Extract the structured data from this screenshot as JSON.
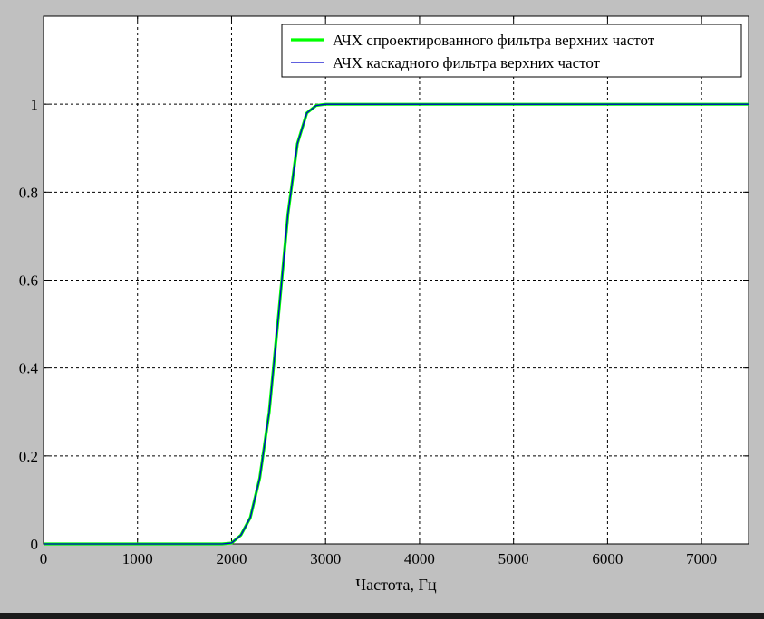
{
  "chart_data": {
    "type": "line",
    "title": "",
    "xlabel": "Частота, Гц",
    "ylabel": "",
    "xlim": [
      0,
      7500
    ],
    "ylim": [
      0,
      1.2
    ],
    "grid": true,
    "legend_position": "top-right",
    "x_ticks": [
      0,
      1000,
      2000,
      3000,
      4000,
      5000,
      6000,
      7000
    ],
    "y_ticks": [
      0,
      0.2,
      0.4,
      0.6,
      0.8,
      1
    ],
    "x_tick_labels": [
      "0",
      "1000",
      "2000",
      "3000",
      "4000",
      "5000",
      "6000",
      "7000"
    ],
    "y_tick_labels": [
      "0",
      "0.2",
      "0.4",
      "0.6",
      "0.8",
      "1"
    ],
    "series": [
      {
        "name": "АЧХ спроектированного фильтра верхних частот",
        "color": "#00ff00",
        "x": [
          0,
          500,
          1000,
          1500,
          1900,
          2000,
          2100,
          2200,
          2300,
          2400,
          2500,
          2600,
          2700,
          2800,
          2900,
          3000,
          3500,
          4000,
          5000,
          6000,
          7000,
          7500
        ],
        "y": [
          0,
          0,
          0,
          0,
          0,
          0.002,
          0.02,
          0.06,
          0.15,
          0.3,
          0.52,
          0.75,
          0.91,
          0.98,
          0.997,
          1,
          1,
          1,
          1,
          1,
          1,
          1
        ]
      },
      {
        "name": "АЧХ каскадного фильтра верхних частот",
        "color": "#0000cc",
        "x": [
          0,
          500,
          1000,
          1500,
          1900,
          2000,
          2100,
          2200,
          2300,
          2400,
          2500,
          2600,
          2700,
          2800,
          2900,
          3000,
          3500,
          4000,
          5000,
          6000,
          7000,
          7500
        ],
        "y": [
          0,
          0,
          0,
          0,
          0,
          0.002,
          0.02,
          0.06,
          0.15,
          0.3,
          0.52,
          0.75,
          0.91,
          0.98,
          0.997,
          1,
          1,
          1,
          1,
          1,
          1,
          1
        ]
      }
    ]
  }
}
